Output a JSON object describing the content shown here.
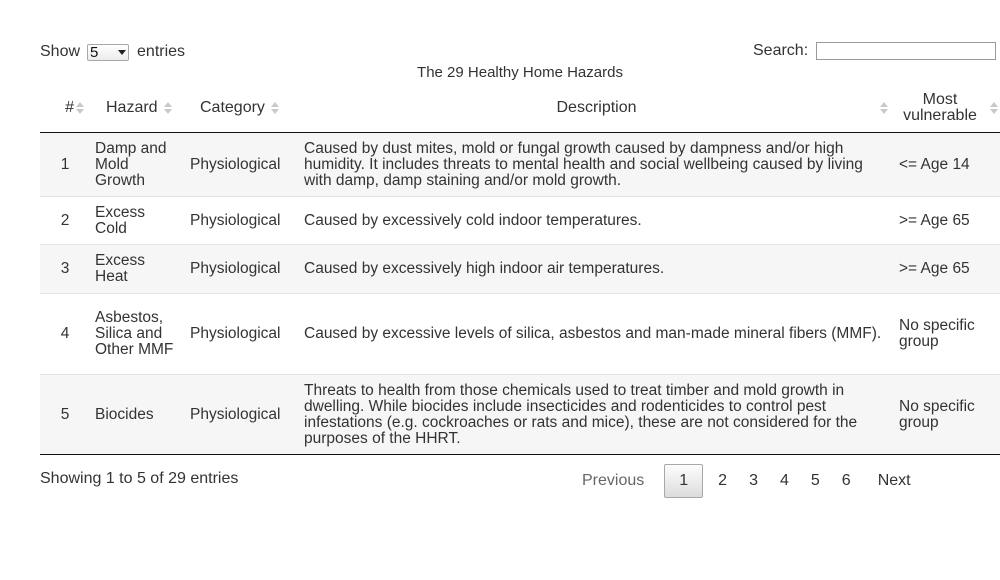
{
  "length": {
    "prefix": "Show",
    "selected": "5",
    "suffix": "entries"
  },
  "search": {
    "label": "Search:",
    "value": ""
  },
  "table": {
    "caption": "The 29 Healthy Home Hazards",
    "headers": [
      "#",
      "Hazard",
      "Category",
      "Description",
      "Most vulnerable"
    ],
    "rows": [
      {
        "num": "1",
        "hazard": "Damp and Mold Growth",
        "category": "Physiological",
        "description": "Caused by dust mites, mold or fungal growth caused by dampness and/or high humidity. It includes threats to mental health and social wellbeing caused by living with damp, damp staining and/or mold growth.",
        "vulnerable": "<= Age 14"
      },
      {
        "num": "2",
        "hazard": "Excess Cold",
        "category": "Physiological",
        "description": "Caused by excessively cold indoor temperatures.",
        "vulnerable": ">= Age 65"
      },
      {
        "num": "3",
        "hazard": "Excess Heat",
        "category": "Physiological",
        "description": "Caused by excessively high indoor air temperatures.",
        "vulnerable": ">= Age 65"
      },
      {
        "num": "4",
        "hazard": "Asbestos, Silica and Other MMF",
        "category": "Physiological",
        "description": "Caused by excessive levels of silica, asbestos and man-made mineral fibers (MMF).",
        "vulnerable": "No specific group"
      },
      {
        "num": "5",
        "hazard": "Biocides",
        "category": "Physiological",
        "description": "Threats to health from those chemicals used to treat timber and mold growth in dwelling. While biocides include insecticides and rodenticides to control pest infestations (e.g. cockroaches or rats and mice), these are not considered for the purposes of the HHRT.",
        "vulnerable": "No specific group"
      }
    ]
  },
  "footer": {
    "info": "Showing 1 to 5 of 29 entries",
    "previous": "Previous",
    "pages": [
      "1",
      "2",
      "3",
      "4",
      "5",
      "6"
    ],
    "current_page": "1",
    "next": "Next"
  }
}
